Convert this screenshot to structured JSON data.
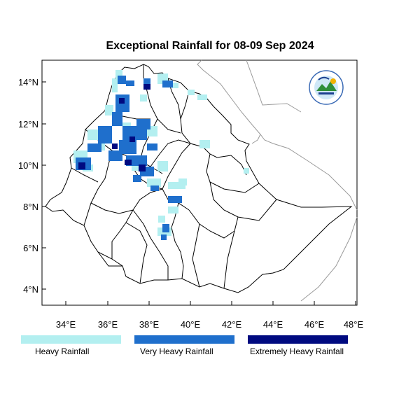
{
  "title": "Exceptional Rainfall for 08-09 Sep 2024",
  "map": {
    "lon_range": [
      32.8,
      48.2
    ],
    "lat_range": [
      3.2,
      15.0
    ],
    "lon_ticks": [
      "34°E",
      "36°E",
      "38°E",
      "40°E",
      "42°E",
      "44°E",
      "46°E",
      "48°E"
    ],
    "lat_ticks": [
      "4°N",
      "6°N",
      "8°N",
      "10°N",
      "12°N",
      "14°N"
    ],
    "logo": "ethiopian-meteorology-institute-logo"
  },
  "legend": [
    {
      "label": "Heavy Rainfall",
      "color": "#b3eff0"
    },
    {
      "label": "Very Heavy Rainfall",
      "color": "#1f6fcc"
    },
    {
      "label": "Extremely Heavy Rainfall",
      "color": "#000a80"
    }
  ],
  "colors": {
    "heavy": "#b3eff0",
    "very_heavy": "#1f6fcc",
    "extreme": "#000a80",
    "boundary": "#000000",
    "neighbor_boundary": "#9a9a9a"
  }
}
